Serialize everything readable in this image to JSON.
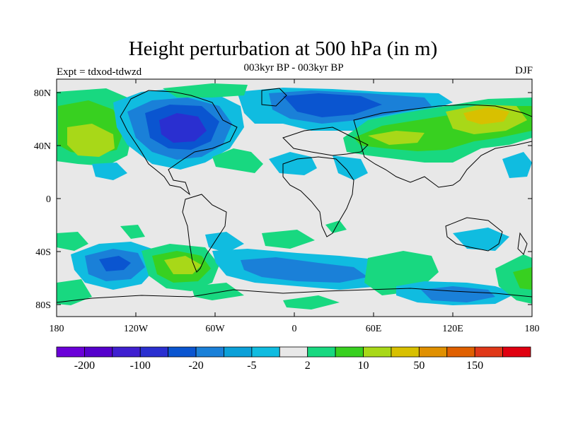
{
  "header": {
    "title": "Height perturbation at 500 hPa (in m)",
    "subtitle": "003kyr BP - 003kyr BP",
    "left_note": "Expt = tdxod-tdwzd",
    "right_note": "DJF"
  },
  "axes": {
    "lat_ticks": [
      "80N",
      "40N",
      "0",
      "40S",
      "80S"
    ],
    "lon_ticks": [
      "180",
      "120W",
      "60W",
      "0",
      "60E",
      "120E",
      "180"
    ]
  },
  "colorbar": {
    "colors": [
      "#6a00d8",
      "#5500cc",
      "#3f1fd0",
      "#2a2fd0",
      "#0a55d0",
      "#1a80d8",
      "#0ba0d8",
      "#10bce0",
      "#e8e8e8",
      "#18d880",
      "#38d020",
      "#a8d818",
      "#d8c000",
      "#e09000",
      "#e06000",
      "#e03818",
      "#e00010"
    ],
    "labels": [
      "-200",
      "-100",
      "-20",
      "-5",
      "2",
      "10",
      "50",
      "150"
    ]
  },
  "chart_data": {
    "type": "heatmap",
    "title": "Height perturbation at 500 hPa (in m)",
    "subtitle": "003kyr BP - 003kyr BP",
    "xlim": [
      -180,
      180
    ],
    "ylim": [
      -90,
      90
    ],
    "levels": [
      -200,
      -100,
      -20,
      -5,
      2,
      10,
      50,
      150
    ],
    "regions": [
      {
        "name": "north-america-low",
        "lon": -95,
        "lat": 55,
        "value": -60
      },
      {
        "name": "north-atlantic-low",
        "lon": -10,
        "lat": 65,
        "value": -10
      },
      {
        "name": "arctic-siberia-low",
        "lon": 40,
        "lat": 70,
        "value": -30
      },
      {
        "name": "north-pacific-high",
        "lon": -165,
        "lat": 45,
        "value": 20
      },
      {
        "name": "asia-high",
        "lon": 60,
        "lat": 45,
        "value": 25
      },
      {
        "name": "far-east-high",
        "lon": 150,
        "lat": 65,
        "value": 60
      },
      {
        "name": "south-pacific-low",
        "lon": -145,
        "lat": -48,
        "value": -15
      },
      {
        "name": "south-america-high",
        "lon": -75,
        "lat": -48,
        "value": 30
      },
      {
        "name": "southern-ocean-low",
        "lon": 20,
        "lat": -55,
        "value": -8
      },
      {
        "name": "southern-indian-high",
        "lon": 70,
        "lat": -45,
        "value": 8
      },
      {
        "name": "antarctic-low",
        "lon": 110,
        "lat": -75,
        "value": -8
      },
      {
        "name": "nz-high",
        "lon": 170,
        "lat": -45,
        "value": 12
      }
    ]
  }
}
